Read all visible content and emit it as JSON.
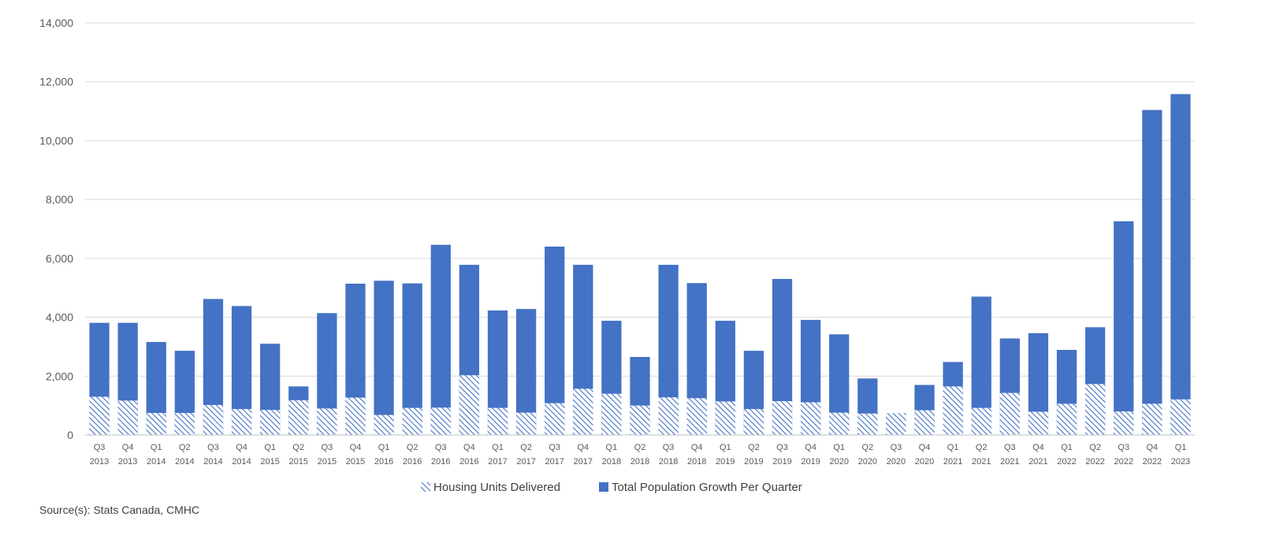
{
  "chart_data": {
    "type": "bar",
    "categories": [
      [
        "Q3",
        "2013"
      ],
      [
        "Q4",
        "2013"
      ],
      [
        "Q1",
        "2014"
      ],
      [
        "Q2",
        "2014"
      ],
      [
        "Q3",
        "2014"
      ],
      [
        "Q4",
        "2014"
      ],
      [
        "Q1",
        "2015"
      ],
      [
        "Q2",
        "2015"
      ],
      [
        "Q3",
        "2015"
      ],
      [
        "Q4",
        "2015"
      ],
      [
        "Q1",
        "2016"
      ],
      [
        "Q2",
        "2016"
      ],
      [
        "Q3",
        "2016"
      ],
      [
        "Q4",
        "2016"
      ],
      [
        "Q1",
        "2017"
      ],
      [
        "Q2",
        "2017"
      ],
      [
        "Q3",
        "2017"
      ],
      [
        "Q4",
        "2017"
      ],
      [
        "Q1",
        "2018"
      ],
      [
        "Q2",
        "2018"
      ],
      [
        "Q3",
        "2018"
      ],
      [
        "Q4",
        "2018"
      ],
      [
        "Q1",
        "2019"
      ],
      [
        "Q2",
        "2019"
      ],
      [
        "Q3",
        "2019"
      ],
      [
        "Q4",
        "2019"
      ],
      [
        "Q1",
        "2020"
      ],
      [
        "Q2",
        "2020"
      ],
      [
        "Q3",
        "2020"
      ],
      [
        "Q4",
        "2020"
      ],
      [
        "Q1",
        "2021"
      ],
      [
        "Q2",
        "2021"
      ],
      [
        "Q3",
        "2021"
      ],
      [
        "Q4",
        "2021"
      ],
      [
        "Q1",
        "2022"
      ],
      [
        "Q2",
        "2022"
      ],
      [
        "Q3",
        "2022"
      ],
      [
        "Q4",
        "2022"
      ],
      [
        "Q1",
        "2023"
      ]
    ],
    "series": [
      {
        "name": "Housing Units Delivered",
        "pattern": "hatched",
        "color": "#4472c4",
        "values": [
          1300,
          1170,
          750,
          750,
          1020,
          880,
          850,
          1180,
          900,
          1270,
          680,
          920,
          930,
          2030,
          920,
          760,
          1080,
          1570,
          1400,
          1000,
          1280,
          1250,
          1140,
          880,
          1150,
          1110,
          760,
          730,
          740,
          840,
          1650,
          920,
          1430,
          790,
          1060,
          1730,
          800,
          1060,
          1210
        ]
      },
      {
        "name": "Total Population Growth Per Quarter",
        "pattern": "solid",
        "color": "#4472c4",
        "values": [
          3810,
          3810,
          3160,
          2860,
          4620,
          4380,
          3100,
          1650,
          4140,
          5140,
          5240,
          5150,
          6460,
          5780,
          4230,
          4280,
          6400,
          5780,
          3880,
          2650,
          5780,
          5160,
          3880,
          2860,
          5300,
          3910,
          3420,
          1920,
          740,
          1700,
          2480,
          4700,
          3280,
          3460,
          2890,
          3660,
          7260,
          11040,
          11580
        ]
      }
    ],
    "ylim": [
      0,
      14000
    ],
    "yticks": [
      "0",
      "2,000",
      "4,000",
      "6,000",
      "8,000",
      "10,000",
      "12,000",
      "14,000"
    ],
    "legend_position": "bottom",
    "grid": true
  },
  "source_note": "Source(s): Stats Canada, CMHC"
}
